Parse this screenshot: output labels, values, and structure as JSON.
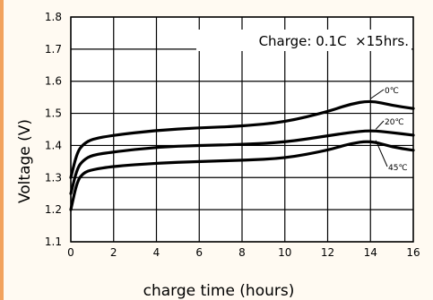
{
  "chart_data": {
    "type": "line",
    "title": "",
    "annotation": "Charge: 0.1C  ×15hrs.",
    "xlabel": "charge time (hours)",
    "ylabel": "Voltage (V)",
    "xlim": [
      0,
      16
    ],
    "ylim": [
      1.1,
      1.8
    ],
    "xticks": [
      "0",
      "2",
      "4",
      "6",
      "8",
      "10",
      "12",
      "14",
      "16"
    ],
    "yticks": [
      "1.1",
      "1.2",
      "1.3",
      "1.4",
      "1.5",
      "1.6",
      "1.7",
      "1.8"
    ],
    "grid": true,
    "series": [
      {
        "name": "0℃",
        "x": [
          0,
          0.3,
          0.6,
          1,
          2,
          4,
          6,
          8,
          10,
          12,
          13,
          14,
          15,
          16
        ],
        "values": [
          1.3,
          1.38,
          1.405,
          1.42,
          1.432,
          1.447,
          1.455,
          1.46,
          1.473,
          1.505,
          1.528,
          1.54,
          1.525,
          1.515
        ]
      },
      {
        "name": "20℃",
        "x": [
          0,
          0.3,
          0.6,
          1,
          2,
          4,
          6,
          8,
          10,
          12,
          13,
          14,
          15,
          16
        ],
        "values": [
          1.25,
          1.33,
          1.355,
          1.37,
          1.38,
          1.395,
          1.4,
          1.403,
          1.41,
          1.43,
          1.44,
          1.447,
          1.44,
          1.432
        ]
      },
      {
        "name": "45℃",
        "x": [
          0,
          0.3,
          0.6,
          1,
          2,
          4,
          6,
          8,
          10,
          12,
          13,
          14,
          15,
          16
        ],
        "values": [
          1.2,
          1.29,
          1.315,
          1.325,
          1.335,
          1.345,
          1.35,
          1.354,
          1.36,
          1.385,
          1.405,
          1.415,
          1.395,
          1.385
        ]
      }
    ],
    "colors": {
      "line": "#000000",
      "grid": "#000000",
      "left_bar": "#f2a25d",
      "background": "#fffaf2"
    }
  }
}
